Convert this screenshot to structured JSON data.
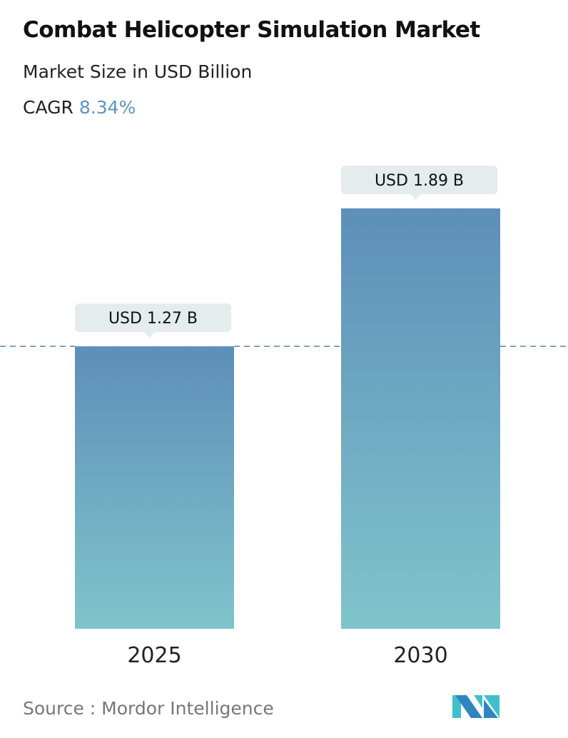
{
  "title": "Combat Helicopter Simulation Market",
  "subtitle": "Market Size in USD Billion",
  "cagr_label": "CAGR",
  "cagr_value": "8.34%",
  "source": "Source :  Mordor Intelligence",
  "logo_text": "MI",
  "colors": {
    "bar_top": "#5d8fb9",
    "bar_bottom": "#80c4cb",
    "cagr": "#5b94c0",
    "dashed_line": "#5a86a8",
    "label_box": "#e4eced"
  },
  "chart_data": {
    "type": "bar",
    "categories": [
      "2025",
      "2030"
    ],
    "values": [
      1.27,
      1.89
    ],
    "data_labels": [
      "USD 1.27 B",
      "USD 1.89 B"
    ],
    "ylabel": "",
    "xlabel": "",
    "grid": false,
    "reference_line": 1.27
  }
}
